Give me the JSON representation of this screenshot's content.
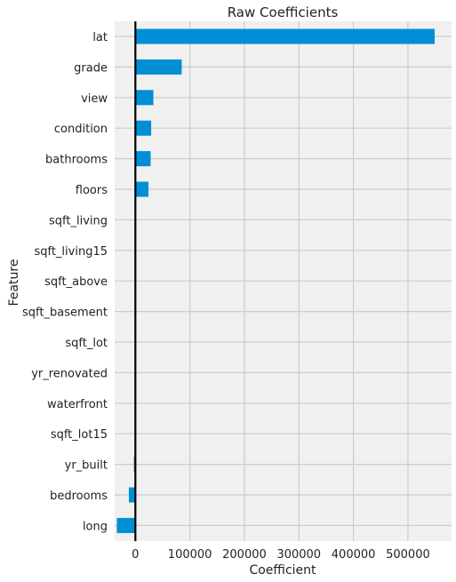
{
  "chart_data": {
    "type": "bar",
    "orientation": "horizontal",
    "title": "Raw Coefficients",
    "xlabel": "Coefficient",
    "ylabel": "Feature",
    "categories": [
      "lat",
      "grade",
      "view",
      "condition",
      "bathrooms",
      "floors",
      "sqft_living",
      "sqft_living15",
      "sqft_above",
      "sqft_basement",
      "sqft_lot",
      "yr_renovated",
      "waterfront",
      "sqft_lot15",
      "yr_built",
      "bedrooms",
      "long"
    ],
    "values": [
      549000,
      85000,
      33000,
      29000,
      28000,
      24000,
      110,
      25,
      70,
      40,
      0.1,
      20,
      600,
      -0.4,
      -2700,
      -12000,
      -34000
    ],
    "xlim": [
      -38000,
      580000
    ],
    "xticks": [
      0,
      100000,
      200000,
      300000,
      400000,
      500000
    ],
    "xtick_labels": [
      "0",
      "100000",
      "200000",
      "300000",
      "400000",
      "500000"
    ],
    "grid": true,
    "zero_line": true,
    "colors": {
      "bar": "#008fd5",
      "background": "#f0f0f0",
      "grid": "#cbcbcb",
      "zero_line": "#000000"
    }
  }
}
